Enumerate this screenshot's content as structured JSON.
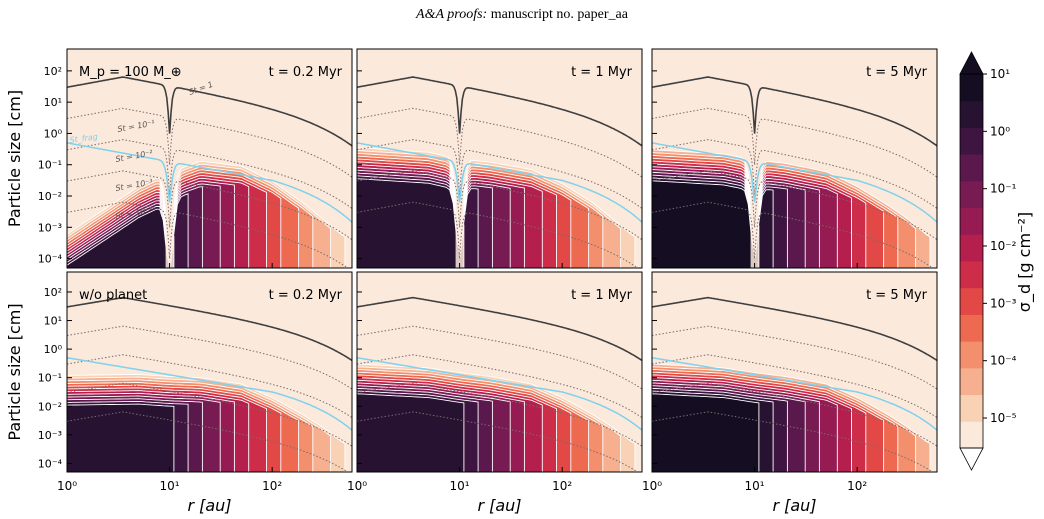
{
  "header": {
    "journal": "A&A proofs:",
    "manuscript": " manuscript no. paper_aa"
  },
  "chart_data": [
    {
      "type": "heatmap",
      "row": "with-planet",
      "annotation": "M_p = 100 M_⊕",
      "time_label": "t = 0.2 Myr",
      "ylabel": "Particle size [cm]",
      "xlabel": "",
      "xscale": "log",
      "yscale": "log",
      "xlim": [
        1,
        600
      ],
      "ylim": [
        5e-05,
        500
      ],
      "curve_labels": [
        "St = 1",
        "St = 10⁻¹",
        "St = 10⁻²",
        "St = 10⁻³",
        "St = 10⁻⁴",
        "St_frag"
      ],
      "planet_gap_au": 10,
      "upper_front_cm": [
        [
          1,
          0.0006
        ],
        [
          5,
          0.02
        ],
        [
          9,
          0.05
        ],
        [
          20,
          0.13
        ],
        [
          50,
          0.09
        ],
        [
          100,
          0.03
        ],
        [
          200,
          0.006
        ],
        [
          300,
          0.002
        ],
        [
          500,
          0.0005
        ]
      ],
      "max_sigma_d": 0.03
    },
    {
      "type": "heatmap",
      "row": "with-planet",
      "annotation": "",
      "time_label": "t = 1 Myr",
      "xlim": [
        1,
        600
      ],
      "ylim": [
        5e-05,
        500
      ],
      "upper_front_cm": [
        [
          1,
          0.35
        ],
        [
          5,
          0.25
        ],
        [
          9,
          0.16
        ],
        [
          20,
          0.12
        ],
        [
          50,
          0.07
        ],
        [
          100,
          0.025
        ],
        [
          200,
          0.006
        ],
        [
          300,
          0.002
        ],
        [
          500,
          0.0005
        ]
      ],
      "max_sigma_d": 0.08
    },
    {
      "type": "heatmap",
      "row": "with-planet",
      "annotation": "",
      "time_label": "t = 5 Myr",
      "xlim": [
        1,
        600
      ],
      "ylim": [
        5e-05,
        500
      ],
      "upper_front_cm": [
        [
          1,
          0.3
        ],
        [
          5,
          0.22
        ],
        [
          9,
          0.15
        ],
        [
          20,
          0.11
        ],
        [
          50,
          0.06
        ],
        [
          100,
          0.02
        ],
        [
          200,
          0.005
        ],
        [
          300,
          0.002
        ],
        [
          500,
          0.0005
        ]
      ],
      "max_sigma_d": 0.3
    },
    {
      "type": "heatmap",
      "row": "without-planet",
      "annotation": "w/o planet",
      "time_label": "t = 0.2 Myr",
      "ylabel": "Particle size [cm]",
      "xlabel": "r [au]",
      "xlim": [
        1,
        600
      ],
      "ylim": [
        5e-05,
        500
      ],
      "upper_front_cm": [
        [
          1,
          0.12
        ],
        [
          5,
          0.13
        ],
        [
          10,
          0.11
        ],
        [
          20,
          0.1
        ],
        [
          50,
          0.06
        ],
        [
          100,
          0.02
        ],
        [
          200,
          0.005
        ],
        [
          300,
          0.002
        ],
        [
          500,
          0.0005
        ]
      ],
      "max_sigma_d": 0.03
    },
    {
      "type": "heatmap",
      "row": "without-planet",
      "annotation": "",
      "time_label": "t = 1 Myr",
      "xlabel": "r [au]",
      "xlim": [
        1,
        600
      ],
      "ylim": [
        5e-05,
        500
      ],
      "upper_front_cm": [
        [
          1,
          0.3
        ],
        [
          5,
          0.22
        ],
        [
          10,
          0.15
        ],
        [
          20,
          0.11
        ],
        [
          50,
          0.06
        ],
        [
          100,
          0.02
        ],
        [
          200,
          0.005
        ],
        [
          300,
          0.002
        ],
        [
          500,
          0.0005
        ]
      ],
      "max_sigma_d": 0.1
    },
    {
      "type": "heatmap",
      "row": "without-planet",
      "annotation": "",
      "time_label": "t = 5 Myr",
      "xlabel": "r [au]",
      "xlim": [
        1,
        600
      ],
      "ylim": [
        5e-05,
        500
      ],
      "upper_front_cm": [
        [
          1,
          0.3
        ],
        [
          5,
          0.22
        ],
        [
          10,
          0.15
        ],
        [
          20,
          0.11
        ],
        [
          50,
          0.06
        ],
        [
          100,
          0.02
        ],
        [
          200,
          0.005
        ],
        [
          300,
          0.002
        ],
        [
          500,
          0.0005
        ]
      ],
      "max_sigma_d": 0.3
    }
  ],
  "axes": {
    "x_ticks": [
      "10⁰",
      "10¹",
      "10²"
    ],
    "x_tick_values": [
      1,
      10,
      100
    ],
    "y_ticks": [
      "10⁻⁴",
      "10⁻³",
      "10⁻²",
      "10⁻¹",
      "10⁰",
      "10¹",
      "10²"
    ],
    "y_tick_values": [
      0.0001,
      0.001,
      0.01,
      0.1,
      1,
      10,
      100
    ]
  },
  "colorbar": {
    "label": "σ_d [g cm⁻²]",
    "ticks": [
      "10¹",
      "10⁰",
      "10⁻¹",
      "10⁻²",
      "10⁻³",
      "10⁻⁴",
      "10⁻⁵"
    ],
    "tick_values": [
      10,
      1,
      0.1,
      0.01,
      0.001,
      0.0001,
      1e-05
    ],
    "levels_per_decade": 2,
    "range": [
      3e-06,
      10
    ],
    "extend": "both",
    "colors": [
      "#fbe9dc",
      "#f9d1b5",
      "#f6b08f",
      "#f38f6d",
      "#ed6a51",
      "#e24845",
      "#ce2d49",
      "#b41f4e",
      "#951b52",
      "#771b52",
      "#5a184c",
      "#3e1540",
      "#271232",
      "#150d22"
    ]
  },
  "colors": {
    "background": "#fbe9dc",
    "st1_curve": "#3f3f3f",
    "st_dotted": "#7a6a6a",
    "st_frag": "#7fd1ec",
    "contour": "#ffffff"
  }
}
